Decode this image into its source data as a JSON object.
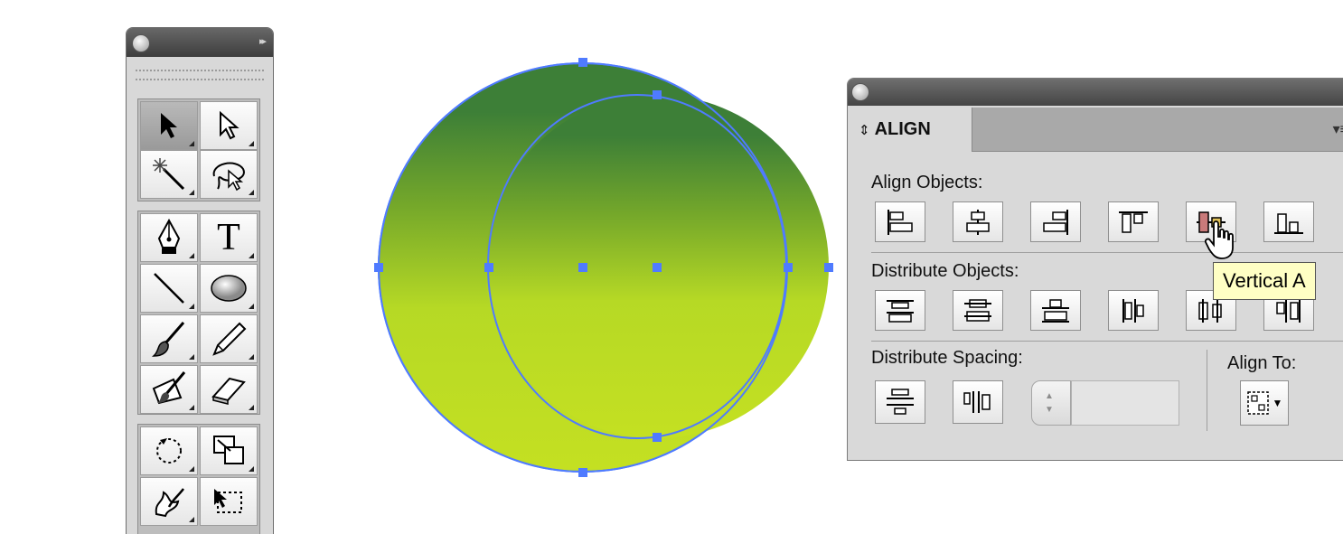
{
  "tools_panel": {
    "collapse_glyph": "▸▸",
    "tools": [
      {
        "name": "selection-tool",
        "icon": "black-arrow-icon"
      },
      {
        "name": "direct-selection-tool",
        "icon": "white-arrow-icon"
      },
      {
        "name": "magic-wand-tool",
        "icon": "magic-wand-icon"
      },
      {
        "name": "lasso-tool",
        "icon": "lasso-icon"
      },
      {
        "name": "pen-tool",
        "icon": "pen-icon"
      },
      {
        "name": "type-tool",
        "icon": "type-icon",
        "glyph": "T"
      },
      {
        "name": "line-segment-tool",
        "icon": "line-icon"
      },
      {
        "name": "ellipse-tool",
        "icon": "ellipse-icon"
      },
      {
        "name": "paintbrush-tool",
        "icon": "brush-icon"
      },
      {
        "name": "pencil-tool",
        "icon": "pencil-icon"
      },
      {
        "name": "blob-brush-tool",
        "icon": "blob-brush-icon"
      },
      {
        "name": "eraser-tool",
        "icon": "eraser-icon"
      },
      {
        "name": "rotate-tool",
        "icon": "rotate-icon"
      },
      {
        "name": "scale-tool",
        "icon": "scale-icon"
      },
      {
        "name": "warp-tool",
        "icon": "warp-icon"
      },
      {
        "name": "free-transform-tool",
        "icon": "free-transform-icon"
      }
    ]
  },
  "artwork": {
    "gradient_top": "#3d7f37",
    "gradient_bottom": "#c4e022",
    "selection_color": "#4f7bff"
  },
  "align_panel": {
    "tab_arrows": "⇕",
    "tab_label": "ALIGN",
    "menu_glyph": "▾≡",
    "align_objects_label": "Align Objects:",
    "distribute_objects_label": "Distribute Objects:",
    "distribute_spacing_label": "Distribute Spacing:",
    "align_to_label": "Align To:",
    "align_to_arrow": "▼",
    "stepper_up": "▲",
    "stepper_down": "▼",
    "spacing_value": "",
    "tooltip": "Vertical A"
  }
}
